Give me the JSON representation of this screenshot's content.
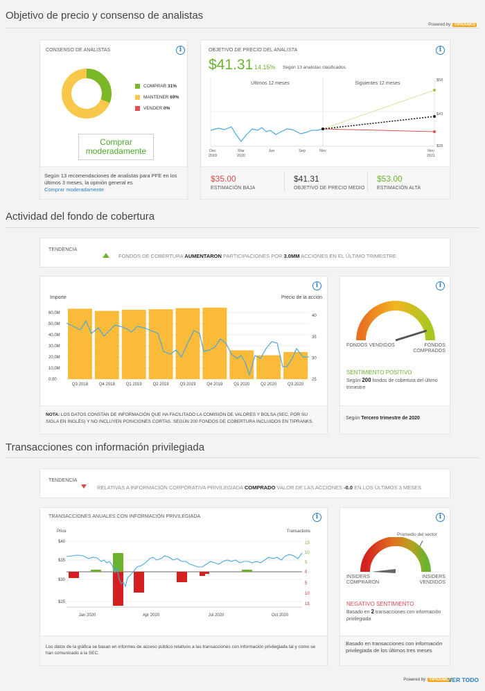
{
  "sections": {
    "price_target": "Objetivo de precio y consenso de analistas",
    "hedge": "Actividad del fondo de cobertura",
    "insider": "Transacciones con información privilegiada"
  },
  "powered_by": "Powered by:",
  "tipranks_logo": "TIPRANKS",
  "consensus": {
    "title": "CONSENSO DE ANALISTAS",
    "legend": [
      {
        "label": "COMPRAR",
        "pct": "31%",
        "value": 31,
        "color": "#7ab828"
      },
      {
        "label": "MANTENER",
        "pct": "69%",
        "value": 69,
        "color": "#f8c84a"
      },
      {
        "label": "VENDER",
        "pct": "0%",
        "value": 0,
        "color": "#e05050"
      }
    ],
    "button": "Comprar moderadamente",
    "footer_text": "Según 13 recomendaciones de analistas para PFE en los últimos 3 meses, la opinión general es",
    "footer_link": "Comprar moderadamente"
  },
  "target": {
    "title": "OBJETIVO DE PRECIO DEL ANALISTA",
    "price": "$41.31",
    "change": "14.15%",
    "note": "Según 13 analistas clasificados",
    "past_label": "Últimos 12 meses",
    "next_label": "Siguientes 12 meses",
    "x_ticks": [
      {
        "l1": "Dec",
        "l2": "2019"
      },
      {
        "l1": "Mar",
        "l2": "2020"
      },
      {
        "l1": "Jun",
        "l2": ""
      },
      {
        "l1": "Sep",
        "l2": ""
      },
      {
        "l1": "Nov",
        "l2": ""
      },
      {
        "l1": "Nov",
        "l2": "2021"
      }
    ],
    "y_labels": [
      "$58",
      "$43",
      "$28"
    ],
    "stats": [
      {
        "value": "$35.00",
        "label": "ESTIMACIÓN BAJA",
        "color": "#e04848"
      },
      {
        "value": "$41.31",
        "label": "OBJETIVO DE PRECIO MEDIO",
        "color": "#333333"
      },
      {
        "value": "$53.00",
        "label": "ESTIMACIÓN ALTA",
        "color": "#6ab32e"
      }
    ]
  },
  "hedge_trend": {
    "label": "TENDENCIA",
    "text_pre": "FONDOS DE COBERTURA",
    "text_bold": "AUMENTARON",
    "text_mid": "PARTICIPACIONES POR",
    "text_bold2": "3.0MM",
    "text_post": "ACCIONES EN EL ÚLTIMO TRIMESTRE"
  },
  "hedge_chart": {
    "left_title": "Importe",
    "right_title": "Precio de la acción",
    "chart_data": {
      "type": "bar",
      "categories": [
        "Q3 2018",
        "Q4 2018",
        "Q1 2019",
        "Q2 2019",
        "Q3 2019",
        "Q4 2019",
        "Q1 2020",
        "Q2 2020",
        "Q3 2020"
      ],
      "values": [
        63.5,
        61.5,
        62.5,
        63,
        64,
        64.5,
        26,
        21.5,
        24.5
      ],
      "ylabel": "Importe",
      "y_ticks": [
        "60.0M",
        "50.0M",
        "40.0M",
        "30.0M",
        "20.0M",
        "10.0M",
        "0.00"
      ],
      "ylim": [
        0,
        65
      ],
      "y2_ticks": [
        "40",
        "35",
        "30",
        "25"
      ],
      "y2lim": [
        25,
        42
      ],
      "bar_color": "#f9bb39",
      "line_color": "#4aa8e0"
    },
    "note_bold": "NOTA:",
    "note": "LOS DATOS CONSTAN DE INFORMACIÓN QUE HA FACILITADO LA COMISIÓN DE VALORES Y BOLSA (SEC, POR SU SIGLA EN INGLÉS) Y NO INCLUYEN POSICIONES CORTAS. SEGÚN 200 FONDOS DE COBERTURA INCLUIDOS EN TIPRANKS."
  },
  "hedge_gauge": {
    "left": "FONDOS VENDIDOS",
    "right": "FONDOS COMPRADOS",
    "sentiment": "SENTIMIENTO POSITIVO",
    "desc_pre": "Según",
    "desc_num": "200",
    "desc_post": "fondos de cobertura del último trimestre",
    "footer_pre": "Según",
    "footer_bold": "Tercero trimestre de 2020"
  },
  "insider_trend": {
    "label": "TENDENCIA",
    "text_pre": "RELATIVAS A INFORMACIÓN CORPORATIVA PRIVILEGIADA",
    "text_bold": "COMPRADO",
    "text_mid": "VALOR DE LAS ACCIONES",
    "text_bold2": "-0.0",
    "text_post": "EN LOS ÚLTIMOS 3 MESES"
  },
  "insider_chart": {
    "title": "TRANSACCIONES ANUALES CON INFORMACIÓN PRIVILEGIADA",
    "left_title": "Price",
    "right_title": "Transactions",
    "chart_data": {
      "type": "bar",
      "y_ticks": [
        "$40",
        "$35",
        "$30",
        "$25"
      ],
      "y2_ticks": [
        "15",
        "10",
        "5",
        "0",
        "5",
        "10",
        "15"
      ],
      "x_ticks": [
        "Jan 2020",
        "Apr 2020",
        "Jul 2020",
        "Oct 2020"
      ],
      "series": [
        {
          "name": "Buys",
          "color": "#6ab32e"
        },
        {
          "name": "Sells",
          "color": "#d42020"
        }
      ],
      "line_color": "#4aa8e0"
    },
    "footer": "Los datos de la gráfica se basan en informes de acceso público relativos a las transacciones con información privilegiada tal y como se han comunicado a la SEC."
  },
  "insider_gauge": {
    "sector": "Promedio del sector",
    "left": "INSIDERS COMPRARON",
    "right": "INSIDERS VENDIDOS",
    "sentiment": "NEGATIVO SENTIMIENTO",
    "desc_pre": "Basado en",
    "desc_num": "2",
    "desc_post": "transacciones con información privilegiada",
    "footer": "Basado en transacciones con información privilegiada de los últimos tres meses"
  },
  "bottom": {
    "powered": "Powered by:",
    "link": "VER TODO"
  }
}
